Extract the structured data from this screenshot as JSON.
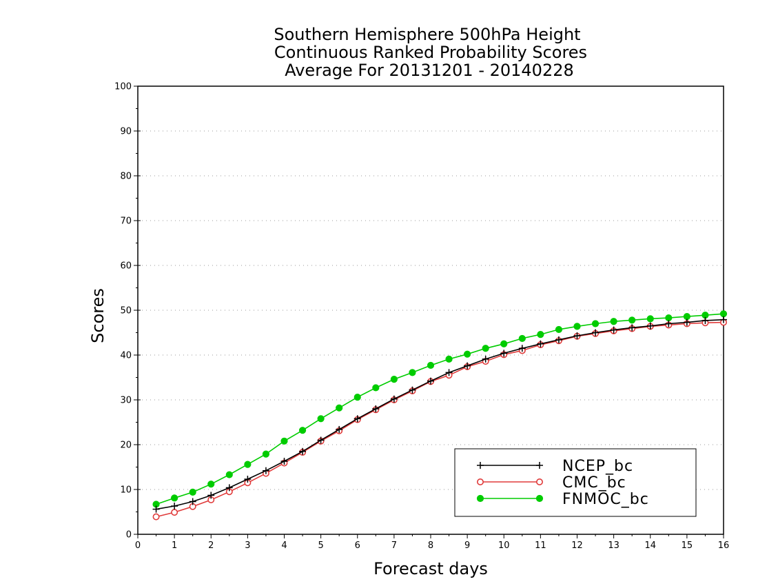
{
  "chart_data": {
    "type": "line",
    "title_lines": [
      "Southern Hemisphere 500hPa Height",
      "Continuous Ranked Probability Scores",
      "Average For 20131201 - 20140228"
    ],
    "xlabel": "Forecast days",
    "ylabel": "Scores",
    "xlim": [
      0,
      16
    ],
    "ylim": [
      0,
      100
    ],
    "x_ticks": [
      0,
      1,
      2,
      3,
      4,
      5,
      6,
      7,
      8,
      9,
      10,
      11,
      12,
      13,
      14,
      15,
      16
    ],
    "y_ticks": [
      0,
      10,
      20,
      30,
      40,
      50,
      60,
      70,
      80,
      90,
      100
    ],
    "grid": "horizontal dotted",
    "legend_position": "bottom-right",
    "x": [
      0.5,
      1,
      1.5,
      2,
      2.5,
      3,
      3.5,
      4,
      4.5,
      5,
      5.5,
      6,
      6.5,
      7,
      7.5,
      8,
      8.5,
      9,
      9.5,
      10,
      10.5,
      11,
      11.5,
      12,
      12.5,
      13,
      13.5,
      14,
      14.5,
      15,
      15.5,
      16
    ],
    "series": [
      {
        "name": "NCEP_bc",
        "color": "#000000",
        "marker": "plus",
        "values": [
          5.6,
          6.3,
          7.3,
          8.7,
          10.4,
          12.3,
          14.2,
          16.3,
          18.5,
          21.0,
          23.4,
          25.8,
          28.0,
          30.2,
          32.2,
          34.2,
          36.1,
          37.6,
          39.1,
          40.4,
          41.5,
          42.5,
          43.4,
          44.3,
          45.0,
          45.6,
          46.1,
          46.5,
          47.0,
          47.3,
          47.7,
          47.9
        ]
      },
      {
        "name": "CMC_bc",
        "color": "#e03a3a",
        "marker": "open-circle",
        "values": [
          3.9,
          4.9,
          6.2,
          7.7,
          9.5,
          11.5,
          13.6,
          15.9,
          18.3,
          20.8,
          23.1,
          25.6,
          27.8,
          30.0,
          32.0,
          34.1,
          35.5,
          37.4,
          38.6,
          40.1,
          41.0,
          42.3,
          43.2,
          44.2,
          44.8,
          45.4,
          45.9,
          46.4,
          46.7,
          47.0,
          47.2,
          47.3
        ]
      },
      {
        "name": "FNMOC_bc",
        "color": "#00cc00",
        "marker": "filled-circle",
        "values": [
          6.7,
          8.1,
          9.4,
          11.2,
          13.3,
          15.6,
          17.9,
          20.8,
          23.2,
          25.8,
          28.2,
          30.6,
          32.7,
          34.6,
          36.1,
          37.7,
          39.1,
          40.2,
          41.5,
          42.5,
          43.7,
          44.6,
          45.7,
          46.4,
          47.0,
          47.5,
          47.8,
          48.1,
          48.3,
          48.6,
          48.9,
          49.2
        ]
      }
    ]
  }
}
